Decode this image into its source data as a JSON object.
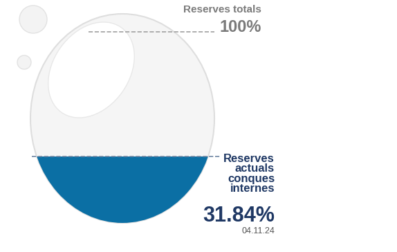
{
  "chart_data": {
    "type": "gauge",
    "categories": [
      "Reserves totals",
      "Reserves actuals conques internes"
    ],
    "values": [
      100,
      31.84
    ],
    "value_labels": [
      "100%",
      "31.84%"
    ],
    "annotation": "04.11.24",
    "color": "#0b6fa4"
  }
}
